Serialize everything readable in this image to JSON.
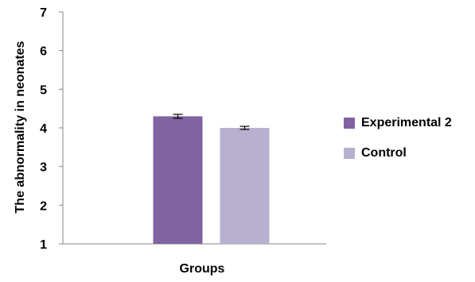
{
  "chart_data": {
    "type": "bar",
    "title": "",
    "xlabel": "Groups",
    "ylabel": "The abnormality in neonates",
    "ylim": [
      1,
      7
    ],
    "yticks": [
      1,
      2,
      3,
      4,
      5,
      6,
      7
    ],
    "grid": false,
    "legend_position": "right",
    "categories": [
      ""
    ],
    "series": [
      {
        "name": "Experimental 2",
        "values": [
          4.3
        ],
        "error": [
          0.05
        ],
        "color": "#8064a2"
      },
      {
        "name": "Control",
        "values": [
          4.0
        ],
        "error": [
          0.04
        ],
        "color": "#b8b0cf"
      }
    ]
  }
}
